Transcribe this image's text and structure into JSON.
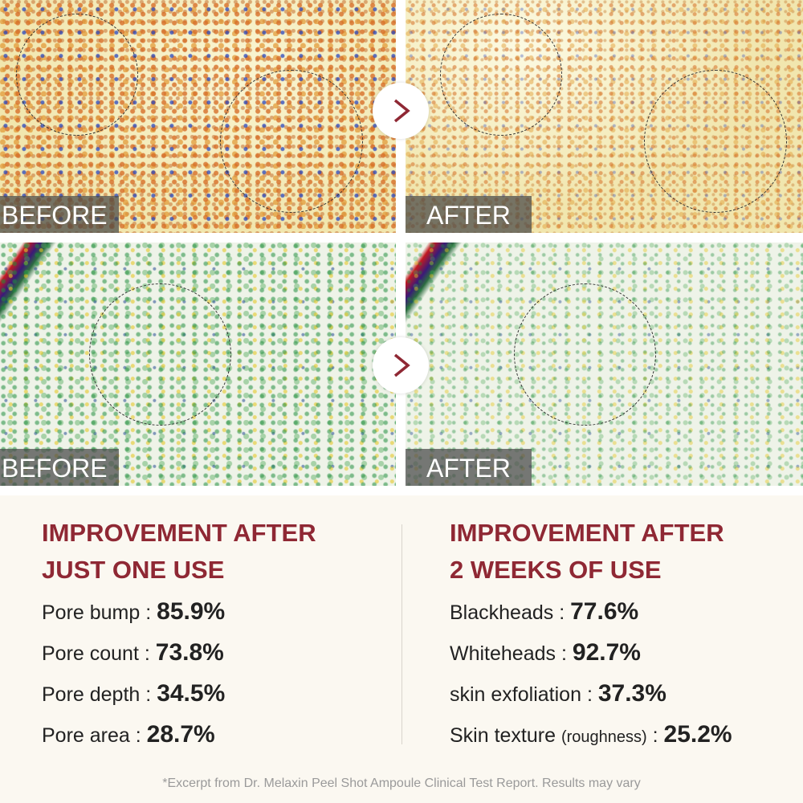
{
  "panels": [
    {
      "label": "BEFORE"
    },
    {
      "label": "AFTER"
    },
    {
      "label": "BEFORE"
    },
    {
      "label": "AFTER"
    }
  ],
  "results": [
    {
      "heading": [
        "IMPROVEMENT AFTER",
        "JUST ONE USE"
      ],
      "items": [
        {
          "label": "Pore bump",
          "colon": ":",
          "value": "85.9%"
        },
        {
          "label": "Pore count",
          "colon": ":",
          "value": "73.8%"
        },
        {
          "label": "Pore depth",
          "colon": ":",
          "value": "34.5%"
        },
        {
          "label": "Pore area",
          "colon": ":",
          "value": "28.7%"
        }
      ]
    },
    {
      "heading": [
        "IMPROVEMENT AFTER",
        "2 WEEKS OF USE"
      ],
      "items": [
        {
          "label": "Blackheads",
          "colon": ":",
          "value": "77.6%"
        },
        {
          "label": "Whiteheads",
          "colon": ":",
          "value": "92.7%"
        },
        {
          "label": "skin exfoliation",
          "colon": ":",
          "value": "37.3%"
        },
        {
          "label": "Skin texture",
          "note": "(roughness)",
          "colon": ":",
          "value": "25.2%"
        }
      ]
    }
  ],
  "footnote": "*Excerpt from Dr. Melaxin Peel Shot Ampoule Clinical Test Report. Results may vary"
}
